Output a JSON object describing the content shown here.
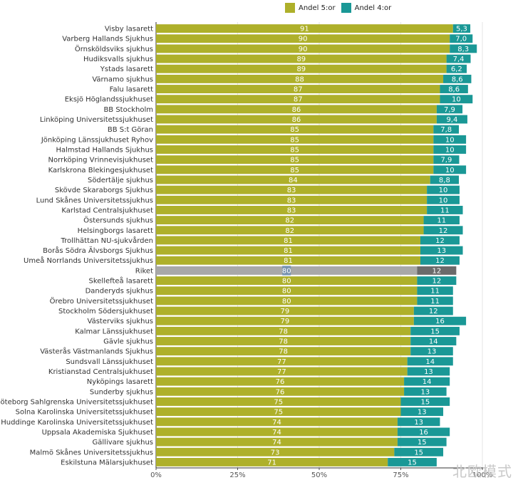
{
  "legend": {
    "items": [
      {
        "label": "Andel 5:or",
        "color": "#aeb02a"
      },
      {
        "label": "Andel 4:or",
        "color": "#1a9896"
      }
    ]
  },
  "colors": {
    "five": "#aeb02a",
    "four": "#1a9896",
    "riket_five": "#a8a8a8",
    "riket_four": "#6b6b6b",
    "riket_marker": "#4f7fb5"
  },
  "watermark": "北欧模式",
  "chart_data": {
    "type": "bar",
    "orientation": "horizontal",
    "stacked": true,
    "xlim": [
      0,
      100
    ],
    "x_ticks": [
      "0%",
      "25%",
      "50%",
      "75%",
      "100%"
    ],
    "legend_position": "top",
    "grid": true,
    "categories": [
      "Visby lasarett",
      "Varberg Hallands Sjukhus",
      "Örnsköldsviks sjukhus",
      "Hudiksvalls sjukhus",
      "Ystads lasarett",
      "Värnamo sjukhus",
      "Falu lasarett",
      "Eksjö Höglandssjukhuset",
      "BB Stockholm",
      "Linköping Universitetssjukhuset",
      "BB S:t Göran",
      "Jönköping Länssjukhuset Ryhov",
      "Halmstad Hallands Sjukhus",
      "Norrköping Vrinnevisjukhuset",
      "Karlskrona Blekingesjukhuset",
      "Södertälje sjukhus",
      "Skövde Skaraborgs Sjukhus",
      "Lund Skånes Universitetssjukhus",
      "Karlstad Centralsjukhuset",
      "Östersunds sjukhus",
      "Helsingborgs lasarett",
      "Trollhättan NU-sjukvården",
      "Borås Södra Älvsborgs Sjukhus",
      "Umeå Norrlands Universitetssjukhus",
      "Riket",
      "Skellefteå lasarett",
      "Danderyds sjukhus",
      "Örebro Universitetssjukhuset",
      "Stockholm Södersjukhuset",
      "Västerviks sjukhus",
      "Kalmar Länssjukhuset",
      "Gävle sjukhus",
      "Västerås Västmanlands Sjukhus",
      "Sundsvall Länssjukhuset",
      "Kristianstad Centralsjukhuset",
      "Nyköpings lasarett",
      "Sunderby sjukhus",
      "Göteborg Sahlgrenska Universitetssjukhuset",
      "Solna Karolinska Universitetssjukhuset",
      "Huddinge Karolinska Universitetssjukhuset",
      "Uppsala Akademiska Sjukhuset",
      "Gällivare sjukhus",
      "Malmö Skånes Universitetssjukhus",
      "Eskilstuna Mälarsjukhuset"
    ],
    "series": [
      {
        "name": "Andel 5:or",
        "values": [
          91,
          90,
          90,
          89,
          89,
          88,
          87,
          87,
          86,
          86,
          85,
          85,
          85,
          85,
          85,
          84,
          83,
          83,
          83,
          82,
          82,
          81,
          81,
          81,
          80,
          80,
          80,
          80,
          79,
          79,
          78,
          78,
          78,
          77,
          77,
          76,
          76,
          75,
          75,
          74,
          74,
          74,
          73,
          71
        ],
        "labels": [
          "91",
          "90",
          "90",
          "89",
          "89",
          "88",
          "87",
          "87",
          "86",
          "86",
          "85",
          "85",
          "85",
          "85",
          "85",
          "84",
          "83",
          "83",
          "83",
          "82",
          "82",
          "81",
          "81",
          "81",
          "80",
          "80",
          "80",
          "80",
          "79",
          "79",
          "78",
          "78",
          "78",
          "77",
          "77",
          "76",
          "76",
          "75",
          "75",
          "74",
          "74",
          "74",
          "73",
          "71"
        ]
      },
      {
        "name": "Andel 4:or",
        "values": [
          5.3,
          7.0,
          8.3,
          7.4,
          6.2,
          8.6,
          8.6,
          10,
          7.9,
          9.4,
          7.8,
          10,
          10,
          7.9,
          10,
          8.8,
          10,
          10,
          11,
          11,
          12,
          12,
          13,
          12,
          12,
          12,
          11,
          11,
          12,
          16,
          15,
          14,
          13,
          14,
          13,
          14,
          13,
          15,
          13,
          13,
          16,
          15,
          15,
          15
        ],
        "labels": [
          "5,3",
          "7,0",
          "8,3",
          "7,4",
          "6,2",
          "8,6",
          "8,6",
          "10",
          "7,9",
          "9,4",
          "7,8",
          "10",
          "10",
          "7,9",
          "10",
          "8,8",
          "10",
          "10",
          "11",
          "11",
          "12",
          "12",
          "13",
          "12",
          "12",
          "12",
          "11",
          "11",
          "12",
          "16",
          "15",
          "14",
          "13",
          "14",
          "13",
          "14",
          "13",
          "15",
          "13",
          "13",
          "16",
          "15",
          "15",
          "15"
        ]
      }
    ],
    "highlight_category": "Riket"
  }
}
